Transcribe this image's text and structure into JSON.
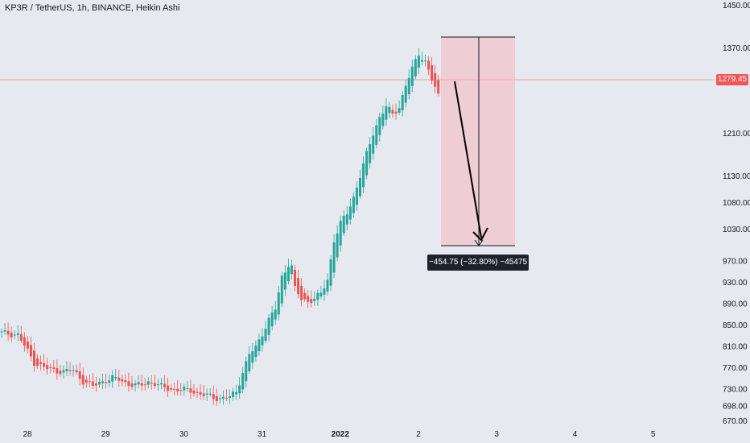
{
  "header": {
    "title": "KP3R / TetherUS, 1h, BINANCE, Heikin Ashi"
  },
  "colors": {
    "background": "#e6e9ef",
    "bullish": "#26a69a",
    "bearish": "#ef5350",
    "price_line": "#f28b82",
    "measure_fill": "#f4b7be",
    "measure_text_bg": "#1e222d"
  },
  "last_price": "1279.45",
  "measure": {
    "label": "−454.75 (−32.80%) −45475"
  },
  "chart_data": {
    "type": "candlestick",
    "style": "Heikin Ashi",
    "grid": false,
    "x_ticks": [
      {
        "label": "28",
        "bold": false
      },
      {
        "label": "29",
        "bold": false
      },
      {
        "label": "30",
        "bold": false
      },
      {
        "label": "31",
        "bold": false
      },
      {
        "label": "2022",
        "bold": true
      },
      {
        "label": "2",
        "bold": false
      },
      {
        "label": "3",
        "bold": false
      },
      {
        "label": "4",
        "bold": false
      },
      {
        "label": "5",
        "bold": false
      }
    ],
    "y_ticks": [
      "1450.00",
      "1370.00",
      "1210.00",
      "1130.00",
      "1080.00",
      "1030.00",
      "970.00",
      "930.00",
      "890.00",
      "850.00",
      "810.00",
      "770.00",
      "730.00",
      "698.00",
      "670.00"
    ],
    "ylim": [
      662,
      1460
    ],
    "close_anchors": [
      [
        0,
        835
      ],
      [
        5,
        832
      ],
      [
        10,
        780
      ],
      [
        13,
        770
      ],
      [
        16,
        765
      ],
      [
        19,
        763
      ],
      [
        22,
        765
      ],
      [
        25,
        745
      ],
      [
        28,
        735
      ],
      [
        31,
        745
      ],
      [
        34,
        750
      ],
      [
        36,
        748
      ],
      [
        38,
        742
      ],
      [
        41,
        736
      ],
      [
        43,
        738
      ],
      [
        45,
        744
      ],
      [
        47,
        740
      ],
      [
        49,
        734
      ],
      [
        52,
        730
      ],
      [
        55,
        728
      ],
      [
        58,
        728
      ],
      [
        61,
        720
      ],
      [
        64,
        716
      ],
      [
        67,
        712
      ],
      [
        70,
        715
      ],
      [
        72,
        725
      ],
      [
        74,
        762
      ],
      [
        76,
        795
      ],
      [
        78,
        808
      ],
      [
        80,
        835
      ],
      [
        82,
        860
      ],
      [
        84,
        880
      ],
      [
        86,
        940
      ],
      [
        88,
        965
      ],
      [
        89,
        960
      ],
      [
        90,
        918
      ],
      [
        92,
        898
      ],
      [
        94,
        895
      ],
      [
        96,
        900
      ],
      [
        98,
        908
      ],
      [
        100,
        935
      ],
      [
        102,
        1010
      ],
      [
        104,
        1040
      ],
      [
        106,
        1060
      ],
      [
        108,
        1090
      ],
      [
        110,
        1130
      ],
      [
        112,
        1170
      ],
      [
        114,
        1210
      ],
      [
        116,
        1240
      ],
      [
        118,
        1260
      ],
      [
        120,
        1245
      ],
      [
        122,
        1260
      ],
      [
        124,
        1300
      ],
      [
        126,
        1330
      ],
      [
        128,
        1360
      ],
      [
        130,
        1345
      ],
      [
        132,
        1310
      ],
      [
        134,
        1279.45
      ]
    ],
    "measure_range": {
      "from": 1384.5,
      "to": 929.75,
      "change": -454.75,
      "percent": -32.8
    }
  }
}
